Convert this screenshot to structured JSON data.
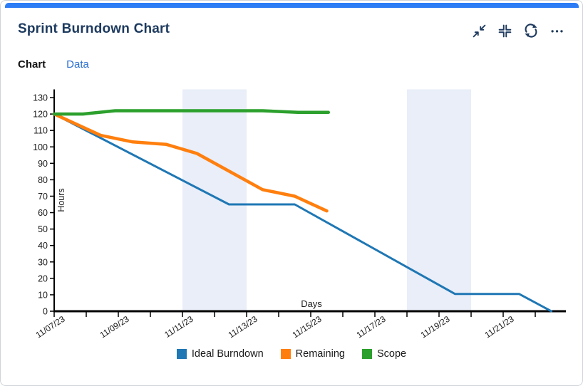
{
  "card": {
    "accent_color": "#2c7cf6"
  },
  "header": {
    "title": "Sprint Burndown Chart",
    "icons": [
      "collapse-icon",
      "fit-to-size-icon",
      "refresh-icon",
      "more-options-icon"
    ],
    "icon_color": "#1e3a5e"
  },
  "tabs": [
    {
      "label": "Chart",
      "active": true
    },
    {
      "label": "Data",
      "active": false
    }
  ],
  "chart_data": {
    "type": "line",
    "xlabel": "Days",
    "ylabel": "Hours",
    "x_unit": "days since 11/07/23",
    "xlim": [
      0,
      15.95
    ],
    "ylim": [
      0,
      135
    ],
    "y_ticks": [
      0,
      10,
      20,
      30,
      40,
      50,
      60,
      70,
      80,
      90,
      100,
      110,
      120,
      130
    ],
    "x_ticks": {
      "positions": [
        0,
        1,
        2,
        3,
        4,
        5,
        6,
        7,
        8,
        9,
        10,
        11,
        12,
        13,
        14,
        15
      ],
      "labeled_positions": [
        0,
        2,
        4,
        6,
        8,
        10,
        12,
        14
      ],
      "labels": [
        "11/07/23",
        "11/09/23",
        "11/11/23",
        "11/13/23",
        "11/15/23",
        "11/17/23",
        "11/19/23",
        "11/21/23"
      ]
    },
    "weekend_bands": [
      [
        4,
        6
      ],
      [
        11,
        13
      ]
    ],
    "band_color": "#e9eef8",
    "axis_color": "#000000",
    "tick_label_color": "#1a1a1a",
    "grid": false,
    "legend_position": "bottom",
    "series": [
      {
        "name": "Ideal Burndown",
        "color": "#1f77b4",
        "width": 3,
        "points": [
          [
            0,
            120
          ],
          [
            5.45,
            65
          ],
          [
            7.5,
            65
          ],
          [
            12.5,
            10.5
          ],
          [
            14.5,
            10.5
          ],
          [
            15.5,
            0
          ]
        ]
      },
      {
        "name": "Remaining",
        "color": "#ff7f0e",
        "width": 4.5,
        "points": [
          [
            0,
            120
          ],
          [
            1.45,
            107
          ],
          [
            2.45,
            103
          ],
          [
            3.5,
            101.5
          ],
          [
            4.45,
            96
          ],
          [
            6.5,
            74
          ],
          [
            7.5,
            70
          ],
          [
            8.5,
            61
          ]
        ]
      },
      {
        "name": "Scope",
        "color": "#2ca02c",
        "width": 4.5,
        "points": [
          [
            0,
            120
          ],
          [
            0.9,
            120
          ],
          [
            1.9,
            122
          ],
          [
            6.5,
            122
          ],
          [
            7.6,
            121
          ],
          [
            8.55,
            121
          ]
        ]
      }
    ]
  }
}
